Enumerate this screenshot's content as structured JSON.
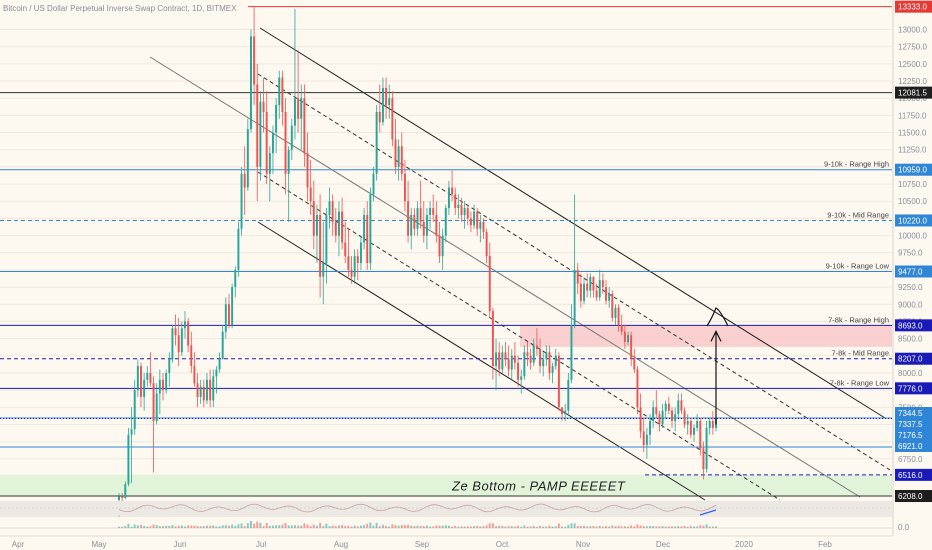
{
  "chart_data": {
    "type": "candlestick",
    "title": "Bitcoin / US Dollar Perpetual Inverse Swap Contract, 1D, BITMEX",
    "x_axis": {
      "labels": [
        "Apr",
        "May",
        "Jun",
        "Jul",
        "Aug",
        "Sep",
        "Oct",
        "Nov",
        "Dec",
        "2020",
        "Feb"
      ]
    },
    "y_axis": {
      "ticks": [
        6750,
        7000,
        7250,
        7500,
        7750,
        8000,
        8250,
        8500,
        8750,
        9000,
        9250,
        9500,
        9750,
        10000,
        10250,
        10500,
        10750,
        11000,
        11250,
        11500,
        11750,
        12000,
        12250,
        12500,
        12750,
        13000
      ],
      "range": [
        6150,
        13430
      ]
    },
    "lower_pane": {
      "label": "0.0"
    },
    "levels": [
      {
        "value": 13333.0,
        "label": "",
        "tag": "13333.0",
        "color": "#e53935",
        "style": "solid",
        "tag_bg": "#e53935"
      },
      {
        "value": 12081.5,
        "label": "",
        "tag": "12081.5",
        "color": "#333333",
        "style": "solid",
        "tag_bg": "#1e1e1e"
      },
      {
        "value": 10959.0,
        "label": "9-10k - Range High",
        "tag": "10959.0",
        "color": "#2f86d6",
        "style": "solid",
        "tag_bg": "#2f86d6"
      },
      {
        "value": 10220.0,
        "label": "9-10k - Mid Range",
        "tag": "10220.0",
        "color": "#2f86d6",
        "style": "dashed",
        "tag_bg": "#2f86d6"
      },
      {
        "value": 9477.0,
        "label": "9-10k - Range Low",
        "tag": "9477.0",
        "color": "#2f86d6",
        "style": "solid",
        "tag_bg": "#2f86d6"
      },
      {
        "value": 8693.0,
        "label": "7-8k - Range High",
        "tag": "8693.0",
        "color": "#1a1ab8",
        "style": "solid",
        "tag_bg": "#1a1ab8"
      },
      {
        "value": 8207.0,
        "label": "7-8k - Mid Range",
        "tag": "8207.0",
        "color": "#1a1ab8",
        "style": "dashed",
        "tag_bg": "#1a1ab8"
      },
      {
        "value": 7776.0,
        "label": "7-8k - Range Low",
        "tag": "7776.0",
        "color": "#1a1ab8",
        "style": "solid",
        "tag_bg": "#1a1ab8"
      },
      {
        "value": 7344.5,
        "label": "",
        "tag": "7344.5",
        "color": "#2f86d6",
        "style": "solid",
        "tag_bg": "#2f86d6"
      },
      {
        "value": 7337.5,
        "label": "",
        "tag": "7337.5",
        "color": "#1a1ab8",
        "style": "dotted",
        "tag_bg": "#2f86d6"
      },
      {
        "value": 7176.5,
        "label": "",
        "tag": "7176.5",
        "color": "#2f86d6",
        "style": "none",
        "tag_bg": "#2f86d6"
      },
      {
        "value": 6921.0,
        "label": "",
        "tag": "6921.0",
        "color": "#2f86d6",
        "style": "solid",
        "tag_bg": "#2f86d6"
      },
      {
        "value": 6516.0,
        "label": "",
        "tag": "6516.0",
        "color": "#1a1ab8",
        "style": "dashed",
        "tag_bg": "#1a1ab8"
      },
      {
        "value": 6208.0,
        "label": "",
        "tag": "6208.0",
        "color": "#333333",
        "style": "solid",
        "tag_bg": "#1e1e1e"
      }
    ],
    "zones": [
      {
        "label": "",
        "from": 8380,
        "to": 8693,
        "color": "#f8c9c9"
      },
      {
        "label": "Ze Bottom - PAMP EEEEET",
        "from": 6208,
        "to": 6516,
        "color": "#dcf3d6"
      }
    ],
    "candles": [
      [
        6150,
        6250,
        5900,
        6200
      ],
      [
        6200,
        6250,
        6100,
        6180
      ],
      [
        6180,
        6420,
        6160,
        6380
      ],
      [
        6380,
        7200,
        6350,
        7100
      ],
      [
        7100,
        7500,
        6400,
        7180
      ],
      [
        7180,
        7900,
        7100,
        7750
      ],
      [
        7750,
        8200,
        7650,
        8100
      ],
      [
        8100,
        8150,
        7500,
        7650
      ],
      [
        7650,
        8000,
        7450,
        7900
      ],
      [
        7900,
        8100,
        7800,
        8000
      ],
      [
        8000,
        8300,
        7800,
        7850
      ],
      [
        7850,
        7950,
        6550,
        7300
      ],
      [
        7300,
        7850,
        7250,
        7700
      ],
      [
        7700,
        8050,
        7400,
        7900
      ],
      [
        7900,
        8000,
        7600,
        7750
      ],
      [
        7750,
        8050,
        7700,
        8000
      ],
      [
        8000,
        8300,
        7800,
        8200
      ],
      [
        8200,
        8700,
        8150,
        8650
      ],
      [
        8650,
        8850,
        8400,
        8550
      ],
      [
        8550,
        8800,
        8100,
        8300
      ],
      [
        8300,
        8750,
        8250,
        8650
      ],
      [
        8650,
        8900,
        8500,
        8750
      ],
      [
        8750,
        8800,
        8300,
        8400
      ],
      [
        8400,
        8600,
        8000,
        8100
      ],
      [
        8100,
        8300,
        7800,
        7850
      ],
      [
        7850,
        8000,
        7500,
        7650
      ],
      [
        7650,
        7900,
        7550,
        7800
      ],
      [
        7800,
        7900,
        7500,
        7600
      ],
      [
        7600,
        8000,
        7550,
        7900
      ],
      [
        7900,
        8050,
        7500,
        7600
      ],
      [
        7600,
        8050,
        7500,
        7950
      ],
      [
        7950,
        8100,
        7700,
        8050
      ],
      [
        8050,
        8300,
        8000,
        8200
      ],
      [
        8200,
        8700,
        8200,
        8600
      ],
      [
        8600,
        9100,
        8500,
        9000
      ],
      [
        9000,
        9150,
        8650,
        8700
      ],
      [
        8700,
        9300,
        8650,
        9250
      ],
      [
        9250,
        9550,
        9100,
        9500
      ],
      [
        9500,
        10200,
        9400,
        10100
      ],
      [
        10100,
        11000,
        10000,
        10900
      ],
      [
        10900,
        11300,
        10300,
        10700
      ],
      [
        10700,
        11700,
        10650,
        11550
      ],
      [
        11550,
        13000,
        11500,
        12900
      ],
      [
        12900,
        13333,
        11900,
        12200
      ],
      [
        12200,
        12500,
        10500,
        11000
      ],
      [
        11000,
        12100,
        10800,
        11950
      ],
      [
        11950,
        12300,
        11500,
        11800
      ],
      [
        11800,
        12100,
        10750,
        10900
      ],
      [
        10900,
        11300,
        10500,
        11200
      ],
      [
        11200,
        11600,
        10900,
        11500
      ],
      [
        11500,
        12000,
        11200,
        11900
      ],
      [
        11900,
        12400,
        11700,
        12300
      ],
      [
        12300,
        12400,
        11600,
        11800
      ],
      [
        11800,
        12000,
        10600,
        10900
      ],
      [
        10900,
        11300,
        10200,
        11250
      ],
      [
        11250,
        11700,
        11100,
        11600
      ],
      [
        11600,
        13300,
        11400,
        12000
      ],
      [
        12000,
        12700,
        11500,
        11700
      ],
      [
        11700,
        12200,
        11250,
        12000
      ],
      [
        12000,
        12200,
        11000,
        11200
      ],
      [
        11200,
        11500,
        10500,
        10700
      ],
      [
        10700,
        11100,
        10300,
        10500
      ],
      [
        10500,
        10800,
        9800,
        10000
      ],
      [
        10000,
        10450,
        9600,
        10300
      ],
      [
        10300,
        10600,
        9100,
        9400
      ],
      [
        9400,
        10200,
        9000,
        9600
      ],
      [
        9600,
        10400,
        9300,
        10300
      ],
      [
        10300,
        10700,
        10100,
        10500
      ],
      [
        10500,
        10600,
        10000,
        10200
      ],
      [
        10200,
        10400,
        9900,
        10000
      ],
      [
        10000,
        10500,
        9700,
        10350
      ],
      [
        10350,
        10550,
        9800,
        9900
      ],
      [
        9900,
        10200,
        9600,
        9700
      ],
      [
        9700,
        10100,
        9400,
        9500
      ],
      [
        9500,
        9700,
        9300,
        9400
      ],
      [
        9400,
        9800,
        9300,
        9700
      ],
      [
        9700,
        9800,
        9350,
        9600
      ],
      [
        9600,
        10000,
        9500,
        9900
      ],
      [
        9900,
        10400,
        9800,
        10300
      ],
      [
        10300,
        10500,
        9500,
        9600
      ],
      [
        9600,
        10700,
        9500,
        10600
      ],
      [
        10600,
        11000,
        10500,
        10900
      ],
      [
        10900,
        11900,
        10800,
        11800
      ],
      [
        11800,
        12200,
        11500,
        11650
      ],
      [
        11650,
        12300,
        11600,
        12150
      ],
      [
        12150,
        12300,
        11700,
        11900
      ],
      [
        11900,
        12200,
        11700,
        12000
      ],
      [
        12000,
        12100,
        11300,
        11400
      ],
      [
        11400,
        11700,
        10900,
        11000
      ],
      [
        11000,
        11400,
        10800,
        11300
      ],
      [
        11300,
        11500,
        10800,
        10900
      ],
      [
        10900,
        11100,
        10350,
        10500
      ],
      [
        10500,
        10800,
        9900,
        10000
      ],
      [
        10000,
        10400,
        9800,
        10300
      ],
      [
        10300,
        10400,
        10000,
        10100
      ],
      [
        10100,
        10500,
        10000,
        10400
      ],
      [
        10400,
        10800,
        10100,
        10200
      ],
      [
        10200,
        10500,
        9900,
        10000
      ],
      [
        10000,
        10400,
        9800,
        10300
      ],
      [
        10300,
        10500,
        10100,
        10400
      ],
      [
        10400,
        10600,
        10200,
        10300
      ],
      [
        10300,
        10500,
        9900,
        10000
      ],
      [
        10000,
        10200,
        9600,
        9700
      ],
      [
        9700,
        10100,
        9500,
        10000
      ],
      [
        10000,
        10450,
        9900,
        10400
      ],
      [
        10400,
        10800,
        10300,
        10700
      ],
      [
        10700,
        10950,
        10500,
        10600
      ],
      [
        10600,
        10700,
        10300,
        10400
      ],
      [
        10400,
        10600,
        10250,
        10450
      ],
      [
        10450,
        10550,
        10200,
        10300
      ],
      [
        10300,
        10500,
        10100,
        10400
      ],
      [
        10400,
        10450,
        10150,
        10250
      ],
      [
        10250,
        10350,
        10050,
        10150
      ],
      [
        10150,
        10450,
        10100,
        10350
      ],
      [
        10350,
        10400,
        10000,
        10100
      ],
      [
        10100,
        10300,
        9900,
        10200
      ],
      [
        10200,
        10250,
        9950,
        10050
      ],
      [
        10050,
        10100,
        9600,
        9700
      ],
      [
        9700,
        9900,
        8800,
        8900
      ],
      [
        8900,
        8950,
        7900,
        8100
      ],
      [
        8100,
        8500,
        7750,
        8300
      ],
      [
        8300,
        8450,
        7950,
        8050
      ],
      [
        8050,
        8400,
        8000,
        8300
      ],
      [
        8300,
        8450,
        8100,
        8200
      ],
      [
        8200,
        8400,
        7950,
        8050
      ],
      [
        8050,
        8350,
        7900,
        8250
      ],
      [
        8250,
        8450,
        8050,
        8150
      ],
      [
        8150,
        8250,
        7800,
        7900
      ],
      [
        7900,
        8050,
        7700,
        7950
      ],
      [
        7950,
        8400,
        7900,
        8300
      ],
      [
        8300,
        8450,
        8100,
        8250
      ],
      [
        8250,
        8350,
        8050,
        8150
      ],
      [
        8150,
        8500,
        8100,
        8400
      ],
      [
        8400,
        8650,
        8250,
        8350
      ],
      [
        8350,
        8500,
        8000,
        8100
      ],
      [
        8100,
        8300,
        7950,
        8200
      ],
      [
        8200,
        8400,
        8100,
        8300
      ],
      [
        8300,
        8400,
        7900,
        8000
      ],
      [
        8000,
        8150,
        7850,
        8100
      ],
      [
        8100,
        8350,
        8050,
        8250
      ],
      [
        8250,
        8300,
        7450,
        7500
      ],
      [
        7500,
        7500,
        7300,
        7400
      ],
      [
        7400,
        7550,
        7300,
        7450
      ],
      [
        7450,
        8000,
        7400,
        7900
      ],
      [
        7900,
        9000,
        7850,
        8700
      ],
      [
        8700,
        10600,
        8650,
        9500
      ],
      [
        9500,
        9600,
        9150,
        9300
      ],
      [
        9300,
        9450,
        8950,
        9050
      ],
      [
        9050,
        9400,
        9000,
        9300
      ],
      [
        9300,
        9450,
        9100,
        9200
      ],
      [
        9200,
        9450,
        9100,
        9400
      ],
      [
        9400,
        9400,
        9100,
        9200
      ],
      [
        9200,
        9300,
        9050,
        9100
      ],
      [
        9100,
        9500,
        9050,
        9350
      ],
      [
        9350,
        9450,
        9150,
        9250
      ],
      [
        9250,
        9350,
        9000,
        9050
      ],
      [
        9050,
        9250,
        8950,
        9150
      ],
      [
        9150,
        9200,
        8750,
        8800
      ],
      [
        8800,
        9000,
        8700,
        8950
      ],
      [
        8950,
        9000,
        8600,
        8700
      ],
      [
        8700,
        8850,
        8550,
        8600
      ],
      [
        8600,
        8700,
        8350,
        8450
      ],
      [
        8450,
        8600,
        8400,
        8550
      ],
      [
        8550,
        8600,
        8100,
        8200
      ],
      [
        8200,
        8350,
        8000,
        8050
      ],
      [
        8050,
        8100,
        7400,
        7500
      ],
      [
        7500,
        7700,
        7050,
        7150
      ],
      [
        7150,
        7350,
        6850,
        6950
      ],
      [
        6950,
        7200,
        6750,
        7100
      ],
      [
        7100,
        7400,
        6950,
        7300
      ],
      [
        7300,
        7600,
        7200,
        7500
      ],
      [
        7500,
        7750,
        7350,
        7400
      ],
      [
        7400,
        7450,
        7150,
        7250
      ],
      [
        7250,
        7550,
        7200,
        7450
      ],
      [
        7450,
        7600,
        7350,
        7550
      ],
      [
        7550,
        7650,
        7400,
        7450
      ],
      [
        7450,
        7500,
        7200,
        7300
      ],
      [
        7300,
        7500,
        7150,
        7400
      ],
      [
        7400,
        7700,
        7350,
        7600
      ],
      [
        7600,
        7700,
        7400,
        7450
      ],
      [
        7450,
        7500,
        7200,
        7250
      ],
      [
        7250,
        7400,
        7100,
        7300
      ],
      [
        7300,
        7350,
        7050,
        7100
      ],
      [
        7100,
        7250,
        7000,
        7200
      ],
      [
        7200,
        7400,
        7150,
        7300
      ],
      [
        7300,
        7350,
        6800,
        6900
      ],
      [
        6900,
        7000,
        6450,
        6600
      ],
      [
        6600,
        7300,
        6550,
        7200
      ],
      [
        7200,
        7350,
        7100,
        7300
      ],
      [
        7300,
        7450,
        7100,
        7200
      ],
      [
        7200,
        7380,
        7150,
        7340
      ]
    ]
  }
}
